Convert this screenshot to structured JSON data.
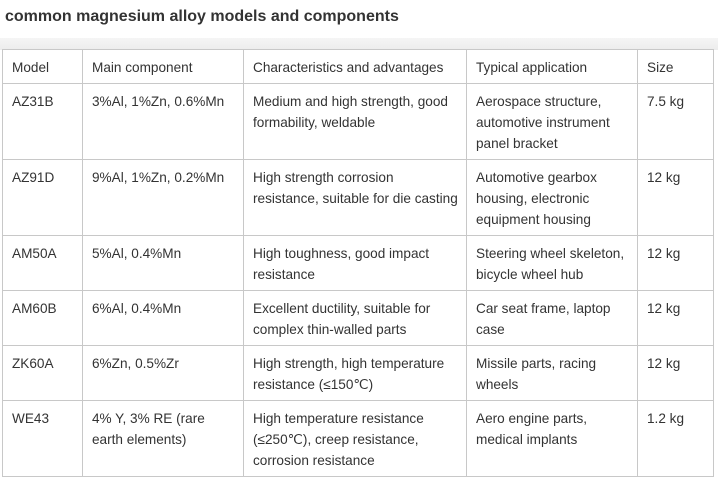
{
  "title": "common magnesium alloy models and components",
  "table": {
    "headers": [
      "Model",
      "Main component",
      "Characteristics and advantages",
      "Typical application",
      "Size"
    ],
    "rows": [
      [
        "AZ31B",
        "3%Al, 1%Zn, 0.6%Mn",
        "Medium and high strength, good formability, weldable",
        "Aerospace structure, automotive instrument panel bracket",
        "7.5 kg"
      ],
      [
        "AZ91D",
        "9%Al, 1%Zn, 0.2%Mn",
        "High strength corrosion resistance, suitable for die casting",
        "Automotive gearbox housing, electronic equipment housing",
        "12 kg"
      ],
      [
        "AM50A",
        "5%Al, 0.4%Mn",
        "High toughness, good impact resistance",
        "Steering wheel skeleton, bicycle wheel hub",
        "12 kg"
      ],
      [
        "AM60B",
        "6%Al, 0.4%Mn",
        "Excellent ductility, suitable for complex thin-walled parts",
        "Car seat frame, laptop case",
        "12 kg"
      ],
      [
        "ZK60A",
        "6%Zn, 0.5%Zr",
        "High strength, high temperature resistance (≤150℃)",
        "Missile parts, racing wheels",
        "12 kg"
      ],
      [
        "WE43",
        "4% Y, 3% RE (rare earth elements)",
        "High temperature resistance (≤250℃), creep resistance, corrosion resistance",
        "Aero engine parts, medical implants",
        "1.2 kg"
      ]
    ]
  }
}
